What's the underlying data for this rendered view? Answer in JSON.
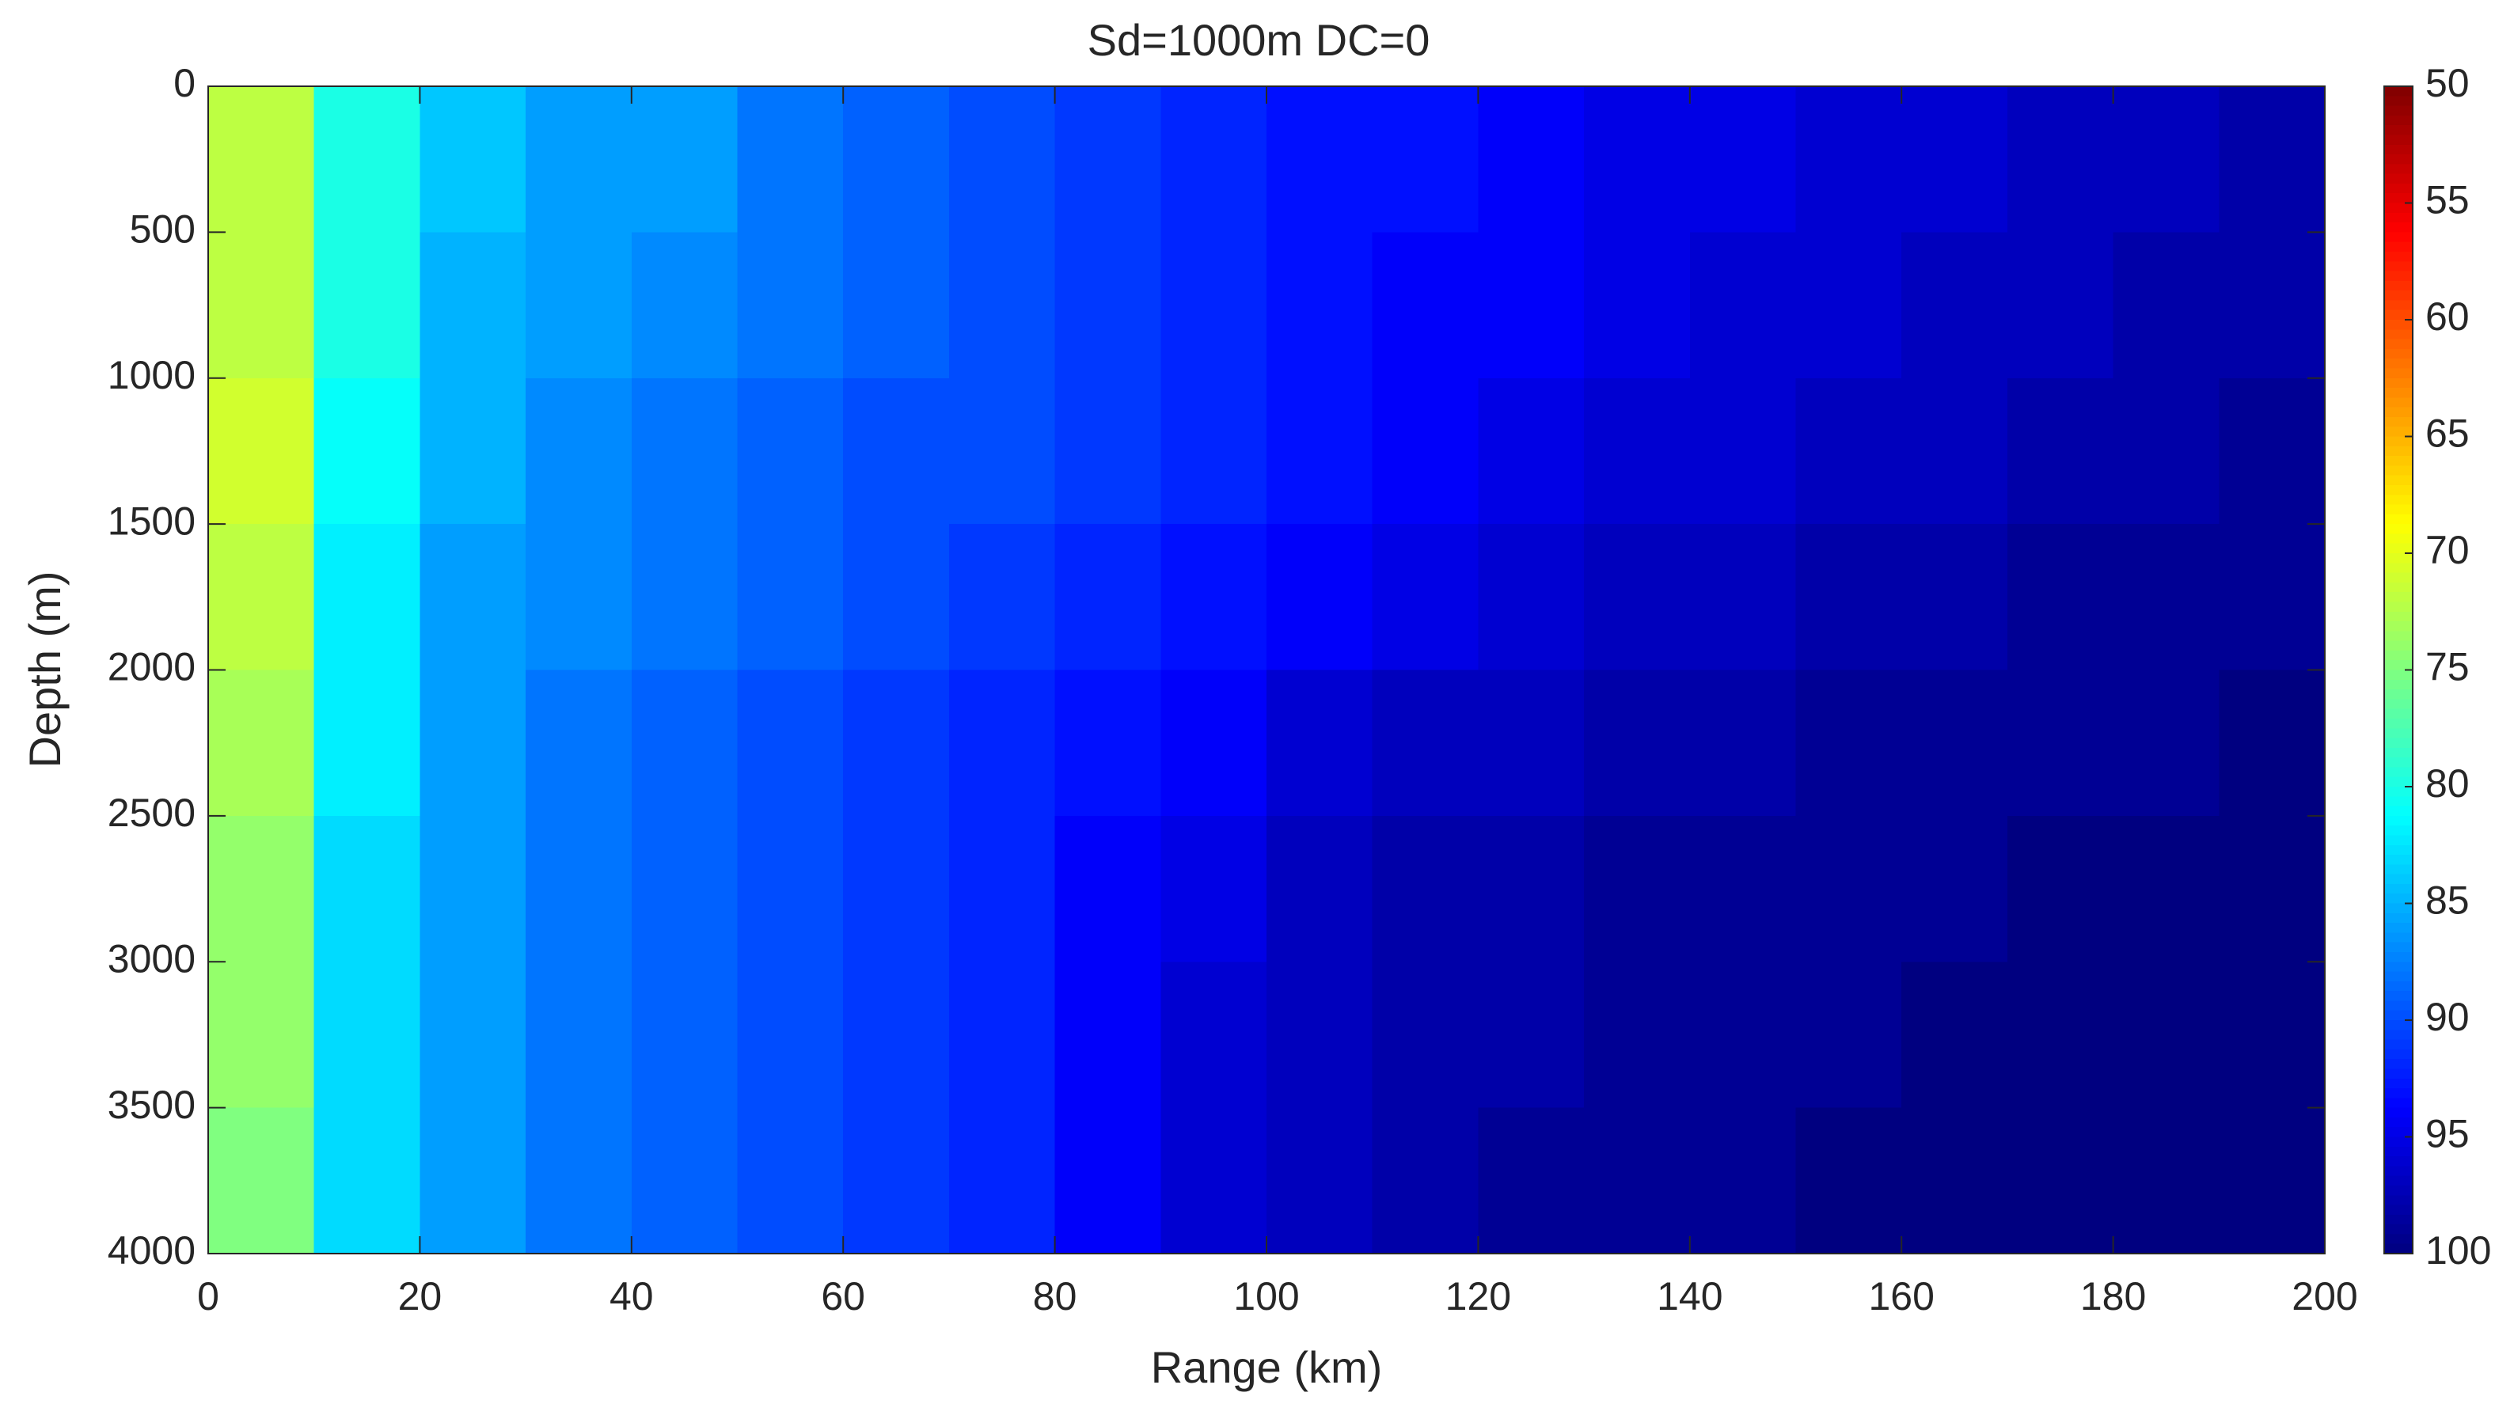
{
  "chart_data": {
    "type": "heatmap",
    "title": "Sd=1000m   DC=0",
    "x_label": "Range (km)",
    "y_label": "Depth (m)",
    "xlim": [
      0,
      200
    ],
    "ylim": [
      0,
      4000
    ],
    "ydir": "reverse",
    "xticks": [
      0,
      20,
      40,
      60,
      80,
      100,
      120,
      140,
      160,
      180,
      200
    ],
    "yticks": [
      0,
      500,
      1000,
      1500,
      2000,
      2500,
      3000,
      3500,
      4000
    ],
    "xbins": [
      0,
      10,
      20,
      30,
      40,
      50,
      60,
      70,
      80,
      90,
      100,
      110,
      120,
      130,
      140,
      150,
      160,
      170,
      180,
      190,
      200
    ],
    "ybins": [
      0,
      500,
      1000,
      1500,
      2000,
      2500,
      3000,
      3500,
      4000
    ],
    "z": [
      [
        72,
        80,
        84,
        86,
        86,
        88,
        89,
        90,
        91,
        92,
        93,
        93,
        94,
        95,
        95,
        96,
        96,
        97,
        97,
        98
      ],
      [
        72,
        80,
        85,
        86,
        87,
        88,
        89,
        90,
        91,
        92,
        93,
        94,
        94,
        95,
        96,
        96,
        97,
        97,
        98,
        98
      ],
      [
        71,
        81,
        85,
        87,
        88,
        89,
        90,
        90,
        91,
        92,
        93,
        94,
        95,
        96,
        96,
        97,
        97,
        98,
        98,
        99
      ],
      [
        72,
        82,
        86,
        87,
        88,
        89,
        90,
        91,
        92,
        93,
        94,
        95,
        96,
        97,
        97,
        98,
        98,
        99,
        99,
        99
      ],
      [
        73,
        82,
        86,
        88,
        89,
        90,
        91,
        92,
        93,
        94,
        96,
        97,
        97,
        98,
        98,
        99,
        99,
        99,
        99,
        100
      ],
      [
        74,
        83,
        86,
        88,
        89,
        90,
        91,
        92,
        94,
        95,
        97,
        98,
        98,
        99,
        99,
        99,
        99,
        100,
        100,
        100
      ],
      [
        74,
        83,
        86,
        88,
        89,
        90,
        91,
        92,
        94,
        96,
        97,
        98,
        98,
        99,
        99,
        99,
        100,
        100,
        100,
        100
      ],
      [
        75,
        83,
        86,
        88,
        89,
        90,
        91,
        92,
        94,
        96,
        97,
        98,
        99,
        99,
        99,
        100,
        100,
        100,
        100,
        100
      ]
    ],
    "colormap": "jet_r",
    "clim": [
      50,
      100
    ],
    "cticks": [
      50,
      55,
      60,
      65,
      70,
      75,
      80,
      85,
      90,
      95,
      100
    ],
    "cdir": "reverse"
  }
}
